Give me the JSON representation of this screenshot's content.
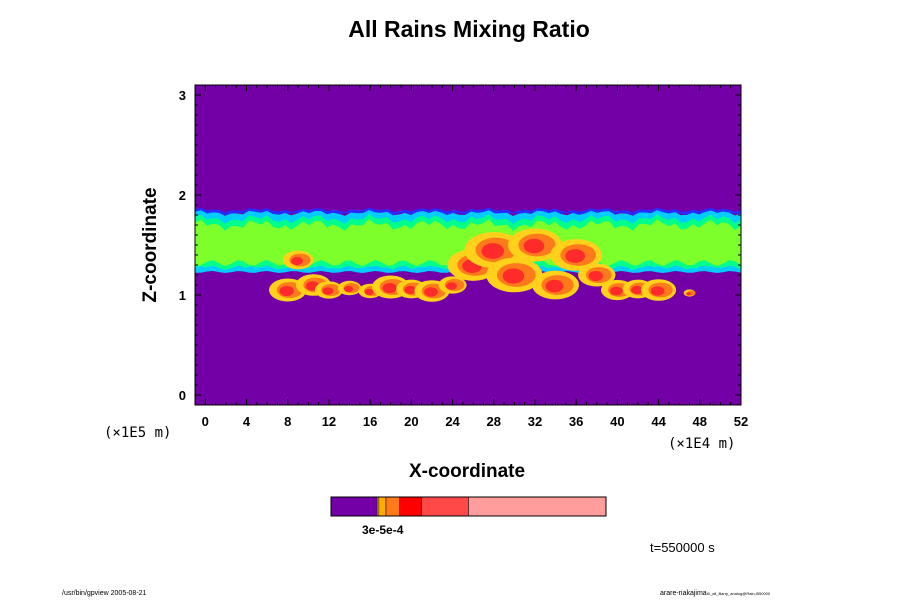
{
  "chart_data": {
    "type": "heatmap",
    "title": "All Rains Mixing Ratio",
    "xlabel": "X-coordinate",
    "ylabel": "Z-coordinate",
    "x_unit": "(×1E4 m)",
    "y_unit": "(×1E5 m)",
    "xlim": [
      -1,
      52
    ],
    "ylim": [
      -0.1,
      3.1
    ],
    "x_ticks": [
      0,
      4,
      8,
      12,
      16,
      20,
      24,
      28,
      32,
      36,
      40,
      44,
      48,
      52
    ],
    "y_ticks": [
      0,
      1,
      2,
      3
    ],
    "background_value_color": "#7300a6",
    "layer": {
      "z_bottom": 1.24,
      "z_top": 1.84,
      "lowest_blobs_z": 1.0,
      "note_colors": [
        "#2a2aff",
        "#00ccff",
        "#00ff8a",
        "#7cff2a",
        "#ffd11a",
        "#ff7a1a",
        "#ff2a2a"
      ]
    },
    "colorbar": {
      "colors": [
        "#7300a6",
        "#ffd200",
        "#ffaa00",
        "#ff7a1a",
        "#ff0000",
        "#ff4848",
        "#ff9c9c"
      ],
      "bounds": [
        0,
        0.168,
        0.174,
        0.2,
        0.25,
        0.33,
        0.5,
        1.0
      ],
      "label": "3e-5e-4"
    },
    "time_label": "t=550000 s"
  },
  "footer": {
    "left": "/usr/bin/gpview 2005-08-21",
    "right_main": "arare-nakajima",
    "right_small": "t0_all_Barry_analog@Rain,t550000"
  }
}
